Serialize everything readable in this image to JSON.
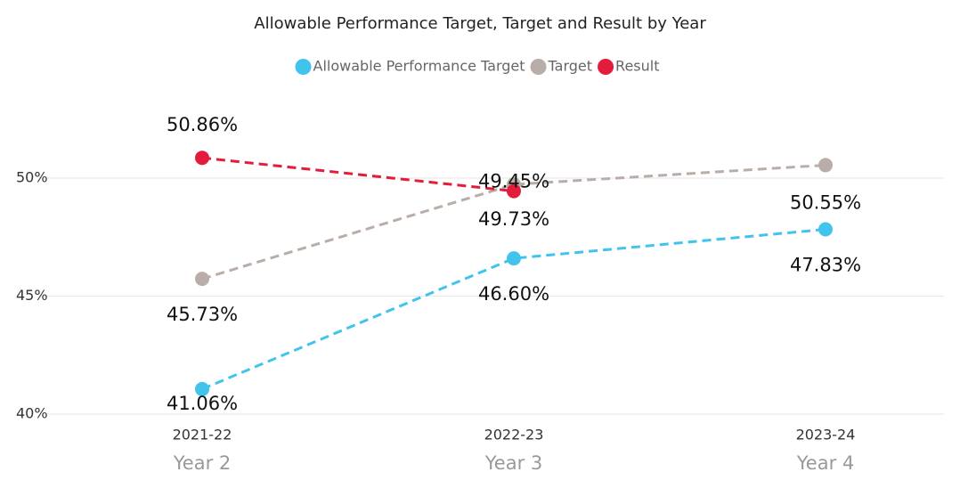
{
  "chart_data": {
    "type": "line",
    "title": "Allowable Performance Target, Target and Result by Year",
    "categories": [
      "2021-22",
      "2022-23",
      "2023-24"
    ],
    "category_groups": [
      "Year 2",
      "Year 3",
      "Year 4"
    ],
    "series": [
      {
        "name": "Allowable Performance Target",
        "color": "#41c4ec",
        "values": [
          41.06,
          46.6,
          47.83
        ],
        "value_labels": [
          "41.06%",
          "46.60%",
          "47.83%"
        ]
      },
      {
        "name": "Target",
        "color": "#b8aea7",
        "values": [
          45.73,
          49.73,
          50.55
        ],
        "value_labels": [
          "45.73%",
          "49.73%",
          "50.55%"
        ]
      },
      {
        "name": "Result",
        "color": "#e31c3d",
        "values": [
          50.86,
          49.45,
          null
        ],
        "value_labels": [
          "50.86%",
          "49.45%",
          null
        ]
      }
    ],
    "ylim": [
      40,
      52
    ],
    "yticks": [
      {
        "value": 40,
        "label": "40%"
      },
      {
        "value": 45,
        "label": "45%"
      },
      {
        "value": 50,
        "label": "50%"
      }
    ],
    "grid": true,
    "legend": "top"
  }
}
